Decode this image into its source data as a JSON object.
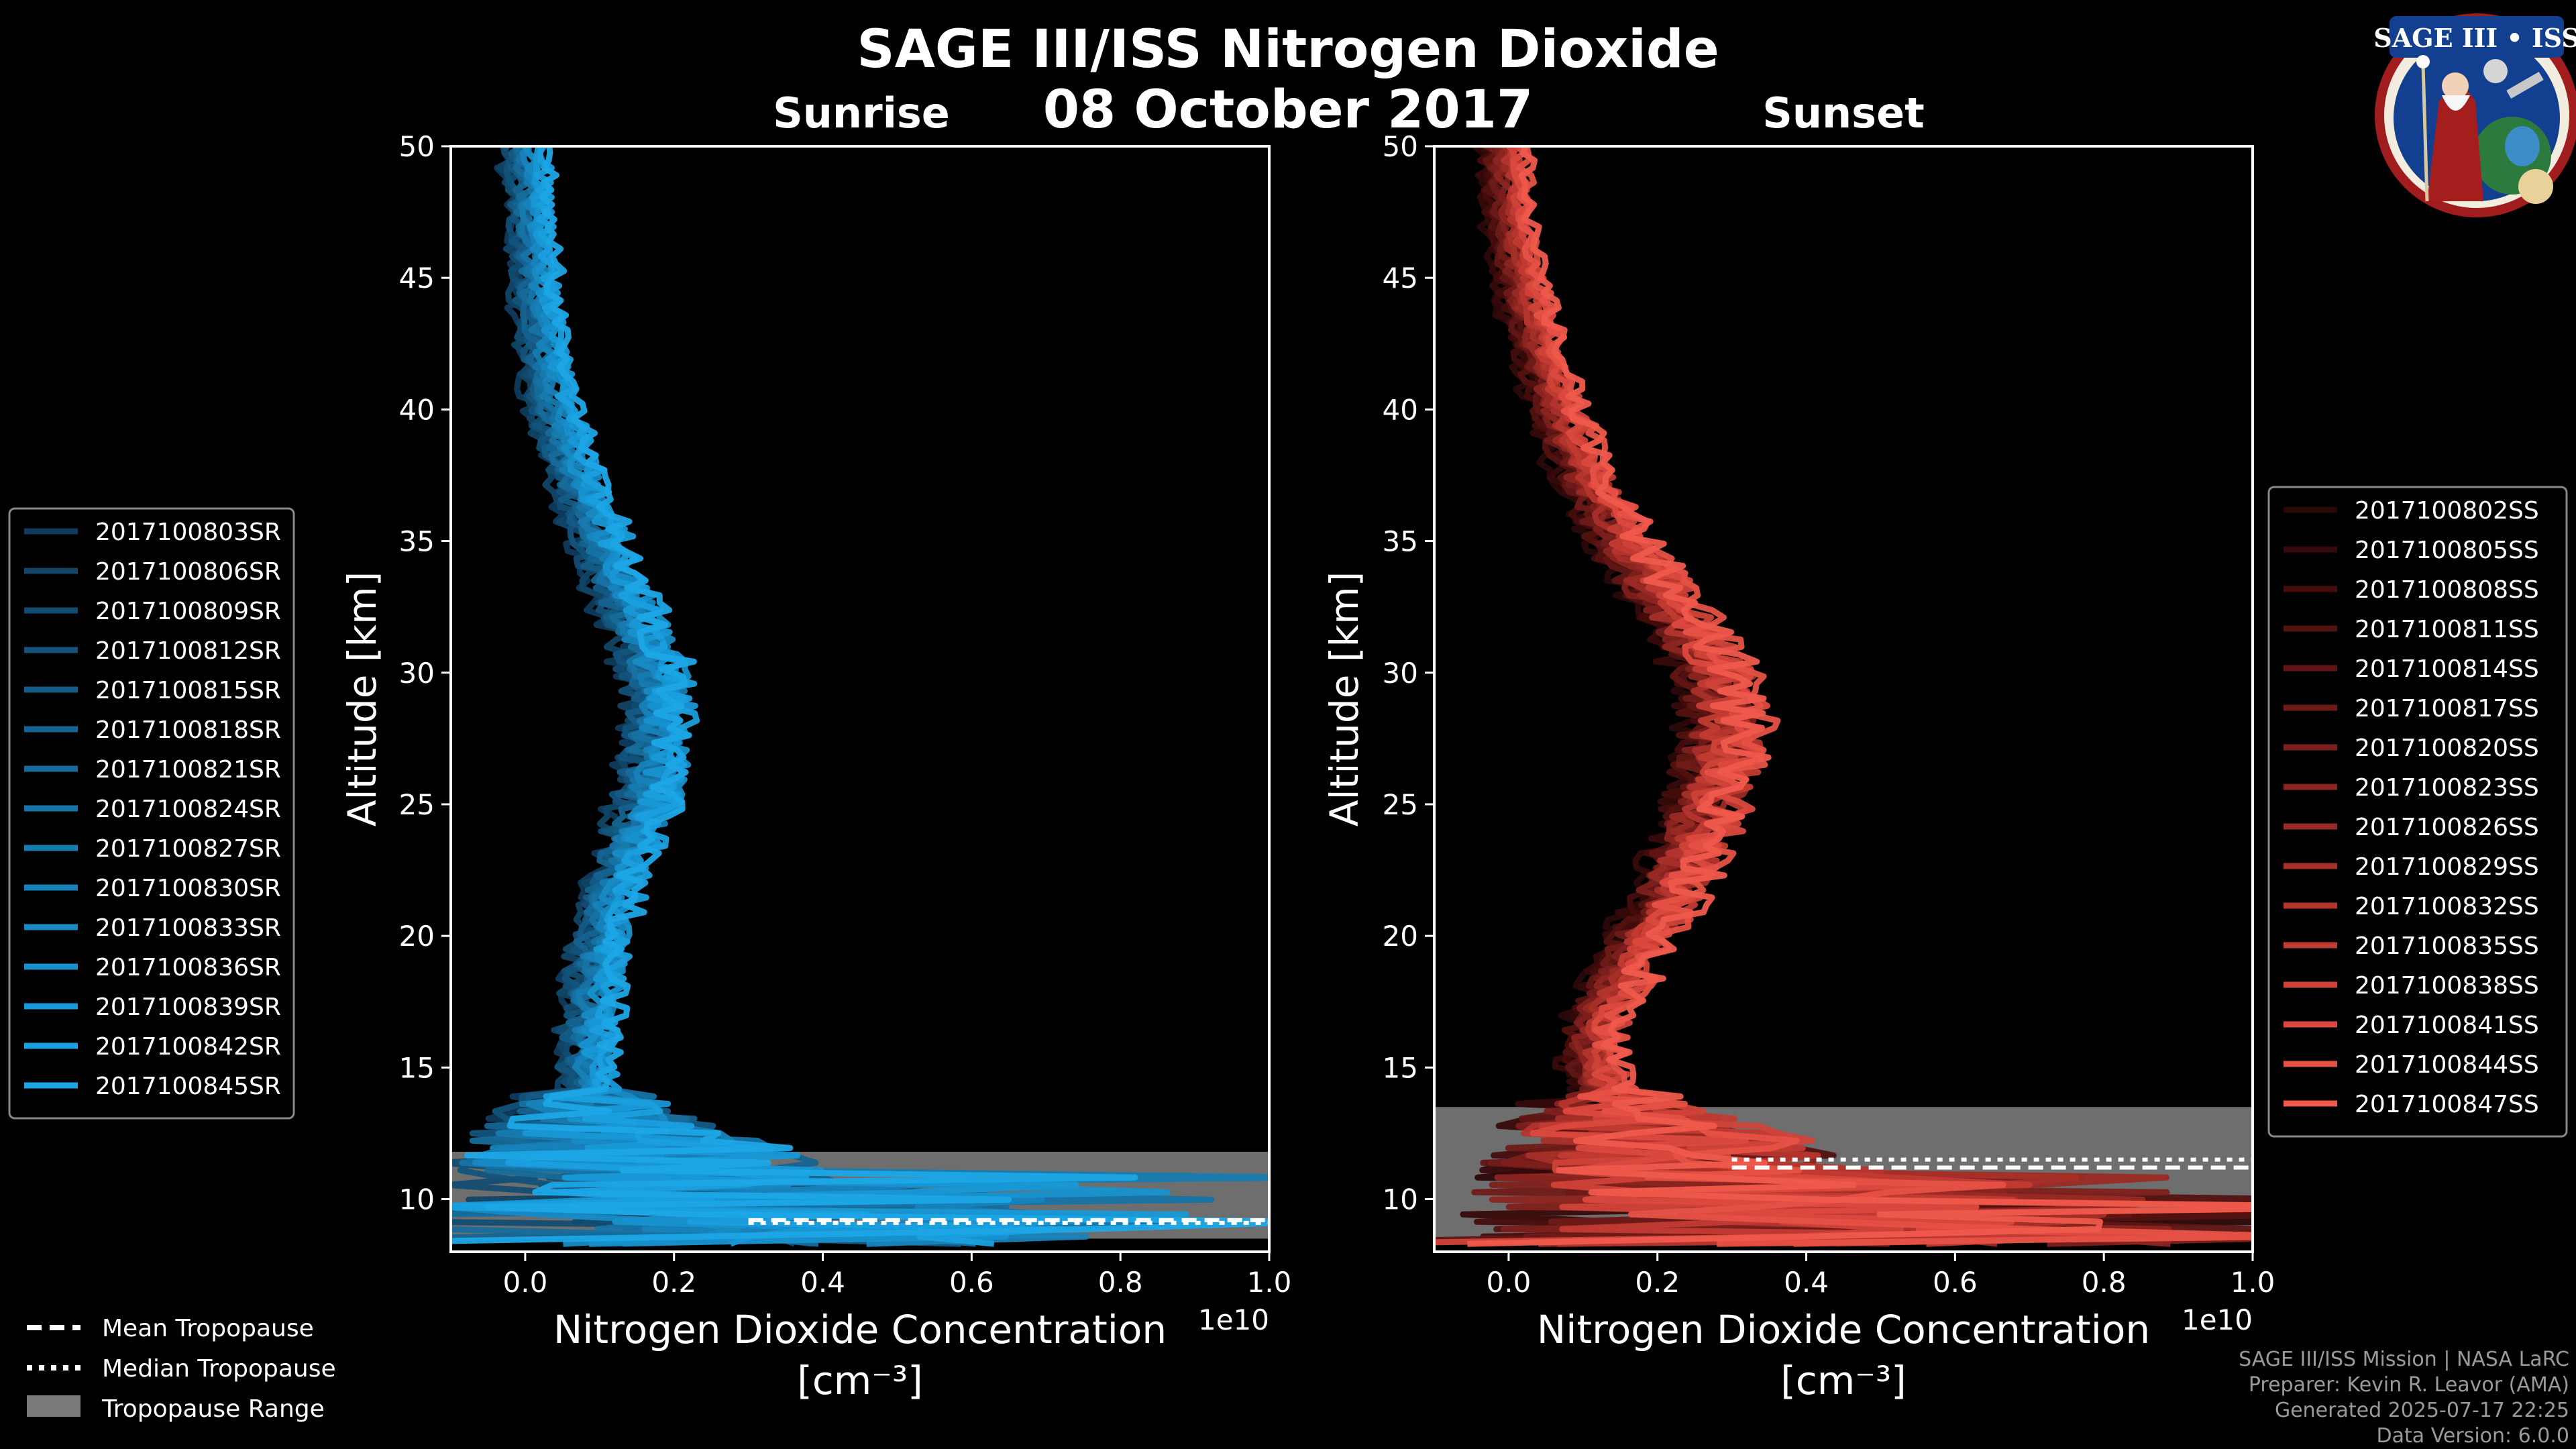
{
  "header": {
    "title": "SAGE III/ISS Nitrogen Dioxide",
    "date": "08 October 2017"
  },
  "logo": {
    "icon": "sage-iii-iss-mission-patch",
    "text": "SAGE III • ISS"
  },
  "chart_data": [
    {
      "type": "line",
      "panel": "sunrise",
      "title": "Sunrise",
      "xlabel": "Nitrogen Dioxide Concentration",
      "xunit": "[cm⁻³]",
      "ylabel": "Altitude [km]",
      "x_scale_label": "1e10",
      "xlim": [
        -0.1,
        1.0
      ],
      "ylim": [
        8,
        50
      ],
      "x_ticks": [
        "0.0",
        "0.2",
        "0.4",
        "0.6",
        "0.8",
        "1.0"
      ],
      "y_ticks": [
        "10",
        "15",
        "20",
        "25",
        "30",
        "35",
        "40",
        "45",
        "50"
      ],
      "base_profile": {
        "altitude": [
          8.5,
          9,
          10,
          11,
          12,
          13,
          14,
          15,
          16,
          17,
          18,
          20,
          22,
          24,
          26,
          28,
          29.5,
          31,
          33,
          35,
          38,
          41,
          44,
          47,
          50
        ],
        "value": [
          0.35,
          0.25,
          0.2,
          0.16,
          0.12,
          0.1,
          0.09,
          0.08,
          0.08,
          0.09,
          0.09,
          0.1,
          0.12,
          0.15,
          0.17,
          0.18,
          0.18,
          0.16,
          0.13,
          0.1,
          0.06,
          0.03,
          0.015,
          0.005,
          0.0
        ]
      },
      "series": [
        {
          "name": "2017100803SR",
          "color": "#0f3b5c"
        },
        {
          "name": "2017100806SR",
          "color": "#114466"
        },
        {
          "name": "2017100809SR",
          "color": "#124c71"
        },
        {
          "name": "2017100812SR",
          "color": "#13537b"
        },
        {
          "name": "2017100815SR",
          "color": "#145b86"
        },
        {
          "name": "2017100818SR",
          "color": "#156390"
        },
        {
          "name": "2017100821SR",
          "color": "#166b9a"
        },
        {
          "name": "2017100824SR",
          "color": "#1673a5"
        },
        {
          "name": "2017100827SR",
          "color": "#177bb0"
        },
        {
          "name": "2017100830SR",
          "color": "#1782ba"
        },
        {
          "name": "2017100833SR",
          "color": "#178ac4"
        },
        {
          "name": "2017100836SR",
          "color": "#1791ce"
        },
        {
          "name": "2017100839SR",
          "color": "#1898d6"
        },
        {
          "name": "2017100842SR",
          "color": "#1a9fde"
        },
        {
          "name": "2017100845SR",
          "color": "#1ca6e6"
        }
      ],
      "mean_tropopause": 9.2,
      "median_tropopause": 9.1,
      "tropopause_range": [
        8.5,
        11.8
      ]
    },
    {
      "type": "line",
      "panel": "sunset",
      "title": "Sunset",
      "xlabel": "Nitrogen Dioxide Concentration",
      "xunit": "[cm⁻³]",
      "ylabel": "Altitude [km]",
      "x_scale_label": "1e10",
      "xlim": [
        -0.1,
        1.0
      ],
      "ylim": [
        8,
        50
      ],
      "x_ticks": [
        "0.0",
        "0.2",
        "0.4",
        "0.6",
        "0.8",
        "1.0"
      ],
      "y_ticks": [
        "10",
        "15",
        "20",
        "25",
        "30",
        "35",
        "40",
        "45",
        "50"
      ],
      "base_profile": {
        "altitude": [
          8.5,
          9,
          10,
          11,
          12,
          13,
          14,
          15,
          16,
          17,
          18,
          20,
          22,
          24,
          26,
          28,
          29.5,
          31,
          33,
          35,
          38,
          41,
          44,
          47,
          50
        ],
        "value": [
          0.45,
          0.35,
          0.3,
          0.25,
          0.2,
          0.16,
          0.13,
          0.11,
          0.11,
          0.12,
          0.14,
          0.18,
          0.22,
          0.25,
          0.28,
          0.29,
          0.28,
          0.25,
          0.2,
          0.15,
          0.09,
          0.05,
          0.02,
          0.0,
          -0.01
        ]
      },
      "series": [
        {
          "name": "2017100802SS",
          "color": "#2a0808"
        },
        {
          "name": "2017100805SS",
          "color": "#360a0a"
        },
        {
          "name": "2017100808SS",
          "color": "#440d0c"
        },
        {
          "name": "2017100811SS",
          "color": "#521210"
        },
        {
          "name": "2017100814SS",
          "color": "#601614"
        },
        {
          "name": "2017100817SS",
          "color": "#6e1b18"
        },
        {
          "name": "2017100820SS",
          "color": "#7d201c"
        },
        {
          "name": "2017100823SS",
          "color": "#8b2520"
        },
        {
          "name": "2017100826SS",
          "color": "#992a24"
        },
        {
          "name": "2017100829SS",
          "color": "#a72f29"
        },
        {
          "name": "2017100832SS",
          "color": "#b5352e"
        },
        {
          "name": "2017100835SS",
          "color": "#c23b33"
        },
        {
          "name": "2017100838SS",
          "color": "#cf4238"
        },
        {
          "name": "2017100841SS",
          "color": "#db493e"
        },
        {
          "name": "2017100844SS",
          "color": "#e65145"
        },
        {
          "name": "2017100847SS",
          "color": "#ef5a4c"
        }
      ],
      "mean_tropopause": 11.2,
      "median_tropopause": 11.5,
      "tropopause_range": [
        8.5,
        13.5
      ]
    }
  ],
  "shared_legend": {
    "mean_label": "Mean Tropopause",
    "median_label": "Median Tropopause",
    "range_label": "Tropopause Range",
    "range_color": "#7a7a7a"
  },
  "credits": {
    "line1": "SAGE III/ISS Mission | NASA LaRC",
    "line2": "Preparer: Kevin R. Leavor (AMA)",
    "line3": "Generated 2025-07-17 22:25",
    "line4": "Data Version: 6.0.0"
  }
}
